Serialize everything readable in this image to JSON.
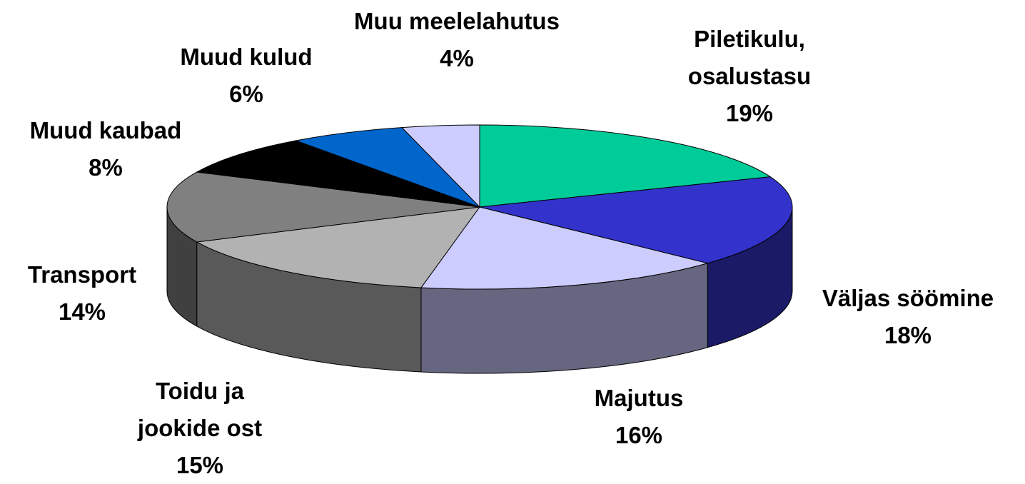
{
  "chart_data": {
    "type": "pie3d",
    "categories": [
      "Piletikulu, osalustasu",
      "Väljas söömine",
      "Majutus",
      "Toidu ja jookide ost",
      "Transport",
      "Muud kaubad",
      "Muud kulud",
      "Muu meelelahutus"
    ],
    "values": [
      19,
      18,
      16,
      15,
      14,
      8,
      6,
      4
    ],
    "value_labels": [
      "19%",
      "18%",
      "16%",
      "15%",
      "14%",
      "8%",
      "6%",
      "4%"
    ],
    "colors": [
      "#00cc99",
      "#3333cc",
      "#ccccff",
      "#b2b2b2",
      "#808080",
      "#000000",
      "#0066cc",
      "#ccccff"
    ]
  }
}
